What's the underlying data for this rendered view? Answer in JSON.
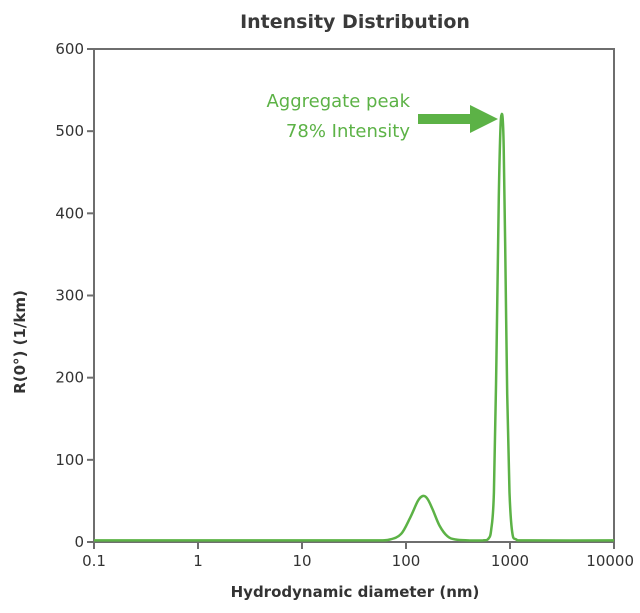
{
  "chart_data": {
    "type": "line",
    "title": "Intensity Distribution",
    "xlabel": "Hydrodynamic diameter (nm)",
    "ylabel": "R(0°) (1/km)",
    "x_scale": "log",
    "xlim": [
      0.1,
      10000
    ],
    "ylim": [
      0,
      600
    ],
    "x_ticks": [
      {
        "value": 0.1,
        "label": "0.1"
      },
      {
        "value": 1,
        "label": "1"
      },
      {
        "value": 10,
        "label": "10"
      },
      {
        "value": 100,
        "label": "100"
      },
      {
        "value": 1000,
        "label": "1000"
      },
      {
        "value": 10000,
        "label": "10000"
      }
    ],
    "y_ticks": [
      {
        "value": 0,
        "label": "0"
      },
      {
        "value": 100,
        "label": "100"
      },
      {
        "value": 200,
        "label": "200"
      },
      {
        "value": 300,
        "label": "300"
      },
      {
        "value": 400,
        "label": "400"
      },
      {
        "value": 500,
        "label": "500"
      },
      {
        "value": 600,
        "label": "600"
      }
    ],
    "grid": false,
    "series": [
      {
        "color": "#5cb246",
        "x": [
          0.1,
          1,
          10,
          50,
          70,
          90,
          110,
          130,
          145,
          160,
          180,
          210,
          250,
          300,
          400,
          550,
          620,
          660,
          700,
          740,
          780,
          810,
          830,
          850,
          870,
          900,
          940,
          990,
          1050,
          1150,
          1500,
          10000
        ],
        "y": [
          2,
          2,
          2,
          2,
          3,
          10,
          30,
          50,
          56,
          53,
          40,
          20,
          7,
          3,
          2,
          2,
          4,
          15,
          60,
          220,
          420,
          505,
          520,
          515,
          480,
          360,
          180,
          60,
          12,
          3,
          2,
          2
        ]
      }
    ],
    "annotations": [
      {
        "lines": [
          "Aggregate peak",
          "78% Intensity"
        ],
        "points_to": {
          "x": 830,
          "y": 520
        }
      }
    ]
  },
  "colors": {
    "series": "#5cb246",
    "axis": "#6e6e6e",
    "text": "#333333"
  }
}
